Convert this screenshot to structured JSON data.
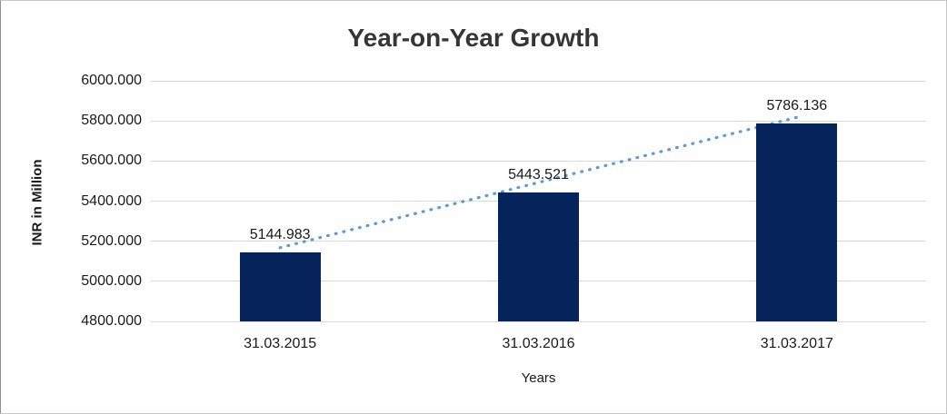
{
  "window": {
    "background": "#ffffff",
    "border_color": "#c9c9c9"
  },
  "chart_data": {
    "type": "bar",
    "title": "Year-on-Year Growth",
    "xlabel": "Years",
    "ylabel": "INR in Million",
    "categories": [
      "31.03.2015",
      "31.03.2016",
      "31.03.2017"
    ],
    "values": [
      5144.983,
      5443.521,
      5786.136
    ],
    "data_labels": [
      "5144.983",
      "5443.521",
      "5786.136"
    ],
    "ylim": [
      4800,
      6000
    ],
    "ytick_step": 200,
    "ytick_labels": [
      "4800.000",
      "5000.000",
      "5200.000",
      "5400.000",
      "5600.000",
      "5800.000",
      "6000.000"
    ],
    "grid": true,
    "legend": false,
    "trendline": {
      "type": "linear",
      "style": "dotted",
      "color": "#5b9bd5"
    },
    "colors": {
      "bar": "#06245c",
      "gridline": "#d9d9d9",
      "title": "#363636",
      "text": "#1a1a1a"
    }
  }
}
